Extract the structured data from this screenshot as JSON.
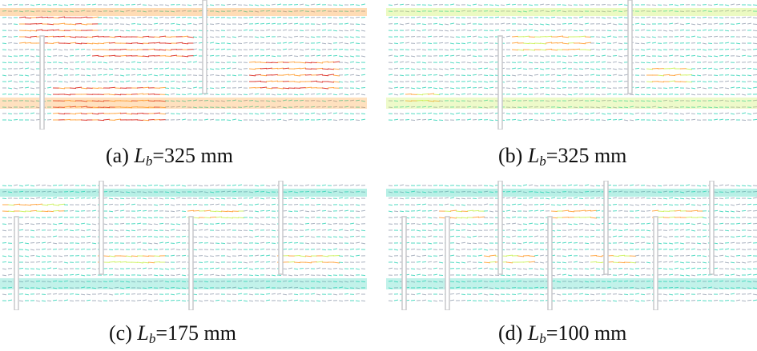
{
  "figure": {
    "panels": [
      {
        "id": "a",
        "label": "(a) ",
        "var": "L",
        "sub": "b",
        "value": "=325 mm",
        "baffle_spacing_mm": 325,
        "flow_intensity": "high"
      },
      {
        "id": "b",
        "label": "(b) ",
        "var": "L",
        "sub": "b",
        "value": "=325 mm",
        "baffle_spacing_mm": 325,
        "flow_intensity": "medium"
      },
      {
        "id": "c",
        "label": "(c) ",
        "var": "L",
        "sub": "b",
        "value": "=175 mm",
        "baffle_spacing_mm": 175,
        "flow_intensity": "low"
      },
      {
        "id": "d",
        "label": "(d) ",
        "var": "L",
        "sub": "b",
        "value": "=100 mm",
        "baffle_spacing_mm": 100,
        "flow_intensity": "low"
      }
    ],
    "colors": {
      "low_velocity": "#35d4b8",
      "mid_velocity": "#c8f050",
      "high_velocity": "#ff9a2a",
      "peak_velocity": "#d81e14",
      "baffle": "#c8c8cc",
      "grid": "#9aa4b4"
    }
  }
}
